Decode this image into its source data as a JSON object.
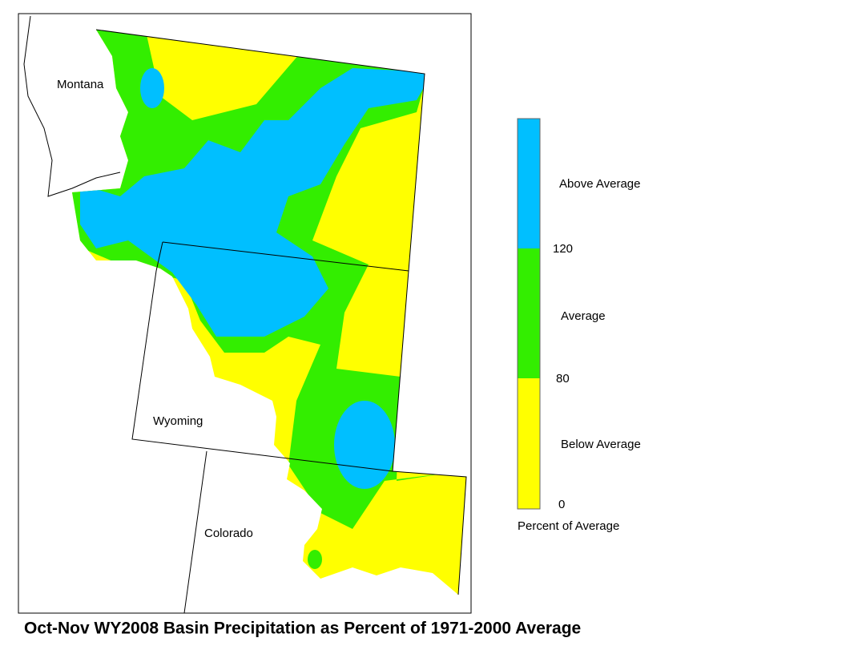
{
  "map": {
    "state_labels": [
      "Montana",
      "Wyoming",
      "Colorado"
    ]
  },
  "legend": {
    "title": "Percent of Average",
    "classes": [
      {
        "label": "Above Average",
        "color": "#00bfff"
      },
      {
        "label": "Average",
        "color": "#33ee00"
      },
      {
        "label": "Below Average",
        "color": "#ffff00"
      }
    ],
    "breaks": [
      120,
      80,
      0
    ]
  },
  "title": "Oct-Nov WY2008 Basin Precipitation as Percent of 1971-2000 Average"
}
